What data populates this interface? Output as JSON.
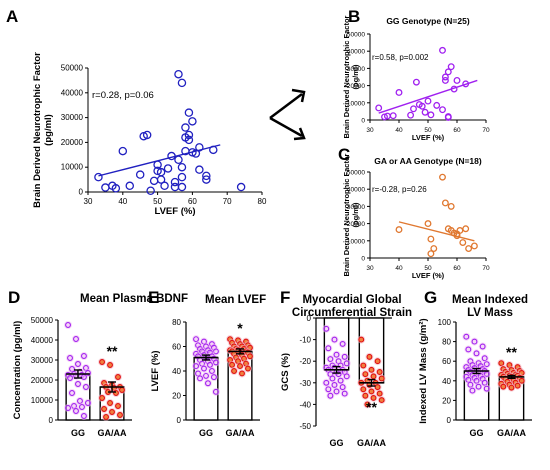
{
  "panel_letters": [
    "A",
    "B",
    "C",
    "D",
    "E",
    "F",
    "G"
  ],
  "colors": {
    "gg": "#a020f0",
    "gg_glow": "#f0b8f0",
    "ga": "#e01010",
    "ga_glow": "#f0b0c0",
    "fill_ga": "#e07830",
    "blue": "#2020c0",
    "arrow": "#000000"
  },
  "chart_data": [
    {
      "id": "A",
      "type": "scatter",
      "title": "",
      "xlabel": "LVEF (%)",
      "ylabel": "Brain Derived Neurotrophic Factor  (pg/ml)",
      "annotation": "r=0.28, p=0.06",
      "xlim": [
        30,
        80
      ],
      "ylim": [
        0,
        50000
      ],
      "xticks": [
        30,
        40,
        50,
        60,
        70,
        80
      ],
      "yticks": [
        0,
        10000,
        20000,
        30000,
        40000,
        50000
      ],
      "marker": "open-circle",
      "color": "#2020c0",
      "fit_line": [
        [
          33,
          6500
        ],
        [
          68,
          19000
        ]
      ],
      "points": [
        [
          33,
          6000
        ],
        [
          35,
          1800
        ],
        [
          37,
          2500
        ],
        [
          38,
          1500
        ],
        [
          40,
          16500
        ],
        [
          42,
          2500
        ],
        [
          45,
          7000
        ],
        [
          46,
          22500
        ],
        [
          47,
          23000
        ],
        [
          48,
          500
        ],
        [
          49,
          4500
        ],
        [
          50,
          11000
        ],
        [
          50,
          8500
        ],
        [
          51,
          8000
        ],
        [
          51,
          5000
        ],
        [
          52,
          2500
        ],
        [
          53,
          9500
        ],
        [
          54,
          14500
        ],
        [
          55,
          4000
        ],
        [
          55,
          2000
        ],
        [
          56,
          47500
        ],
        [
          56,
          13000
        ],
        [
          57,
          44000
        ],
        [
          57,
          6000
        ],
        [
          57,
          10000
        ],
        [
          57,
          2000
        ],
        [
          58,
          26000
        ],
        [
          58,
          22000
        ],
        [
          58,
          16500
        ],
        [
          59,
          32000
        ],
        [
          59,
          23000
        ],
        [
          59,
          21000
        ],
        [
          60,
          28500
        ],
        [
          60,
          16000
        ],
        [
          61,
          15500
        ],
        [
          62,
          9000
        ],
        [
          62,
          18000
        ],
        [
          64,
          6500
        ],
        [
          64,
          5000
        ],
        [
          66,
          17000
        ],
        [
          74,
          2000
        ]
      ]
    },
    {
      "id": "B",
      "type": "scatter",
      "title": "GG  Genotype (N=25)",
      "xlabel": "LVEF (%)",
      "ylabel": "Brain Derived Neurotrophic Factor  (pg/ml)",
      "annotation": "r=0.58, p=0.002",
      "xlim": [
        30,
        70
      ],
      "ylim": [
        0,
        50000
      ],
      "xticks": [
        30,
        40,
        50,
        60,
        70
      ],
      "yticks": [
        0,
        10000,
        20000,
        30000,
        40000,
        50000
      ],
      "marker": "open-circle",
      "color": "#a020f0",
      "fit_line": [
        [
          33,
          4000
        ],
        [
          67,
          23000
        ]
      ],
      "points": [
        [
          33,
          7000
        ],
        [
          35,
          1800
        ],
        [
          36,
          2300
        ],
        [
          38,
          2500
        ],
        [
          40,
          16000
        ],
        [
          44,
          2800
        ],
        [
          45,
          6500
        ],
        [
          46,
          22000
        ],
        [
          47,
          9000
        ],
        [
          48,
          8000
        ],
        [
          49,
          4500
        ],
        [
          50,
          11000
        ],
        [
          51,
          3000
        ],
        [
          53,
          8500
        ],
        [
          55,
          40500
        ],
        [
          55,
          6000
        ],
        [
          56,
          23000
        ],
        [
          56,
          25000
        ],
        [
          57,
          28000
        ],
        [
          57,
          2000
        ],
        [
          57,
          1500
        ],
        [
          58,
          31000
        ],
        [
          59,
          18000
        ],
        [
          60,
          23000
        ],
        [
          63,
          21000
        ]
      ]
    },
    {
      "id": "C",
      "type": "scatter",
      "title": "GA or AA Genotype (N=18)",
      "xlabel": "LVEF (%)",
      "ylabel": "Brain Derived Neurotrophic Factor  (pg/ml)",
      "annotation": "r=-0.28, p=0.26",
      "xlim": [
        30,
        70
      ],
      "ylim": [
        0,
        50000
      ],
      "xticks": [
        30,
        40,
        50,
        60,
        70
      ],
      "yticks": [
        0,
        10000,
        20000,
        30000,
        40000,
        50000
      ],
      "marker": "open-circle",
      "color": "#e07830",
      "fit_line": [
        [
          40,
          21000
        ],
        [
          66,
          10000
        ]
      ],
      "points": [
        [
          40,
          16500
        ],
        [
          50,
          20000
        ],
        [
          51,
          11000
        ],
        [
          51,
          2500
        ],
        [
          52,
          5500
        ],
        [
          55,
          47000
        ],
        [
          56,
          32000
        ],
        [
          57,
          17000
        ],
        [
          58,
          30000
        ],
        [
          58,
          16000
        ],
        [
          59,
          14500
        ],
        [
          60,
          14000
        ],
        [
          60,
          13000
        ],
        [
          61,
          16000
        ],
        [
          62,
          9000
        ],
        [
          63,
          17000
        ],
        [
          64,
          5500
        ],
        [
          66,
          7000
        ]
      ]
    },
    {
      "id": "D",
      "type": "bar",
      "title": "Mean Plasma BDNF",
      "xlabel": "",
      "ylabel": "Concentration (pg/ml)",
      "categories": [
        "GG",
        "GA/AA"
      ],
      "means": [
        23000,
        16500
      ],
      "sem": [
        2000,
        2500
      ],
      "ylim": [
        0,
        50000
      ],
      "yticks": [
        0,
        10000,
        20000,
        30000,
        40000,
        50000
      ],
      "significance": "**",
      "points": [
        [
          47500,
          40500,
          32000,
          31000,
          28000,
          26000,
          25500,
          24000,
          23500,
          23000,
          22500,
          22500,
          22000,
          21500,
          21000,
          18000,
          16500,
          13500,
          9500,
          8500,
          7000,
          6500,
          6000,
          4500,
          2000
        ],
        [
          29000,
          27500,
          21500,
          18500,
          17500,
          16500,
          16500,
          16000,
          15000,
          14000,
          13500,
          11000,
          8500,
          7000,
          5500,
          4000,
          2500,
          1500
        ]
      ]
    },
    {
      "id": "E",
      "type": "bar",
      "title": "Mean LVEF",
      "xlabel": "",
      "ylabel": "LVEF (%)",
      "categories": [
        "GG",
        "GA/AA"
      ],
      "means": [
        51,
        56
      ],
      "sem": [
        2,
        2
      ],
      "ylim": [
        0,
        80
      ],
      "yticks": [
        0,
        20,
        40,
        60,
        80
      ],
      "significance": "*",
      "points": [
        [
          66,
          64,
          62,
          61,
          60,
          59,
          58,
          57,
          56,
          56,
          55,
          54,
          53,
          52,
          52,
          51,
          50,
          49,
          48,
          47,
          46,
          45,
          44,
          42,
          40,
          38,
          36,
          35,
          34,
          30,
          23
        ],
        [
          66,
          65,
          64,
          63,
          62,
          61,
          60,
          60,
          59,
          58,
          58,
          57,
          57,
          56,
          56,
          55,
          55,
          54,
          53,
          52,
          51,
          50,
          49,
          48,
          46,
          45,
          44,
          42,
          40,
          38
        ]
      ]
    },
    {
      "id": "F",
      "type": "bar",
      "title": "Myocardial Global Circumferential Strain",
      "xlabel": "",
      "ylabel": "GCS (%)",
      "categories": [
        "GG",
        "GA/AA"
      ],
      "means": [
        -24,
        -30
      ],
      "sem": [
        1.5,
        1.5
      ],
      "ylim": [
        -50,
        0
      ],
      "yticks": [
        0,
        -10,
        -20,
        -30,
        -40,
        -50
      ],
      "significance": "**",
      "points": [
        [
          -5,
          -10,
          -12,
          -14,
          -17,
          -18,
          -19,
          -20,
          -21,
          -22,
          -22,
          -23,
          -23,
          -24,
          -24,
          -25,
          -25,
          -26,
          -26,
          -27,
          -28,
          -29,
          -30,
          -31,
          -32,
          -33,
          -34,
          -35,
          -36
        ],
        [
          -10,
          -18,
          -20,
          -22,
          -24,
          -25,
          -26,
          -27,
          -28,
          -29,
          -30,
          -30,
          -31,
          -32,
          -33,
          -34,
          -35,
          -36,
          -37,
          -38,
          -40
        ]
      ]
    },
    {
      "id": "G",
      "type": "bar",
      "title": "Mean Indexed LV Mass",
      "xlabel": "",
      "ylabel": "Indexed LV Mass (g/m²)",
      "categories": [
        "GG",
        "GA/AA"
      ],
      "means": [
        50,
        44
      ],
      "sem": [
        2.5,
        1.5
      ],
      "ylim": [
        0,
        100
      ],
      "yticks": [
        0,
        20,
        40,
        60,
        80,
        100
      ],
      "significance": "**",
      "points": [
        [
          85,
          80,
          75,
          72,
          68,
          63,
          60,
          58,
          57,
          56,
          55,
          54,
          53,
          52,
          51,
          50,
          50,
          49,
          48,
          47,
          46,
          45,
          44,
          43,
          42,
          41,
          40,
          38,
          36,
          34,
          32,
          30
        ],
        [
          58,
          56,
          54,
          52,
          51,
          50,
          49,
          48,
          48,
          47,
          46,
          46,
          45,
          45,
          44,
          44,
          43,
          42,
          41,
          40,
          39,
          38,
          37,
          36,
          35,
          34,
          33
        ]
      ]
    }
  ]
}
